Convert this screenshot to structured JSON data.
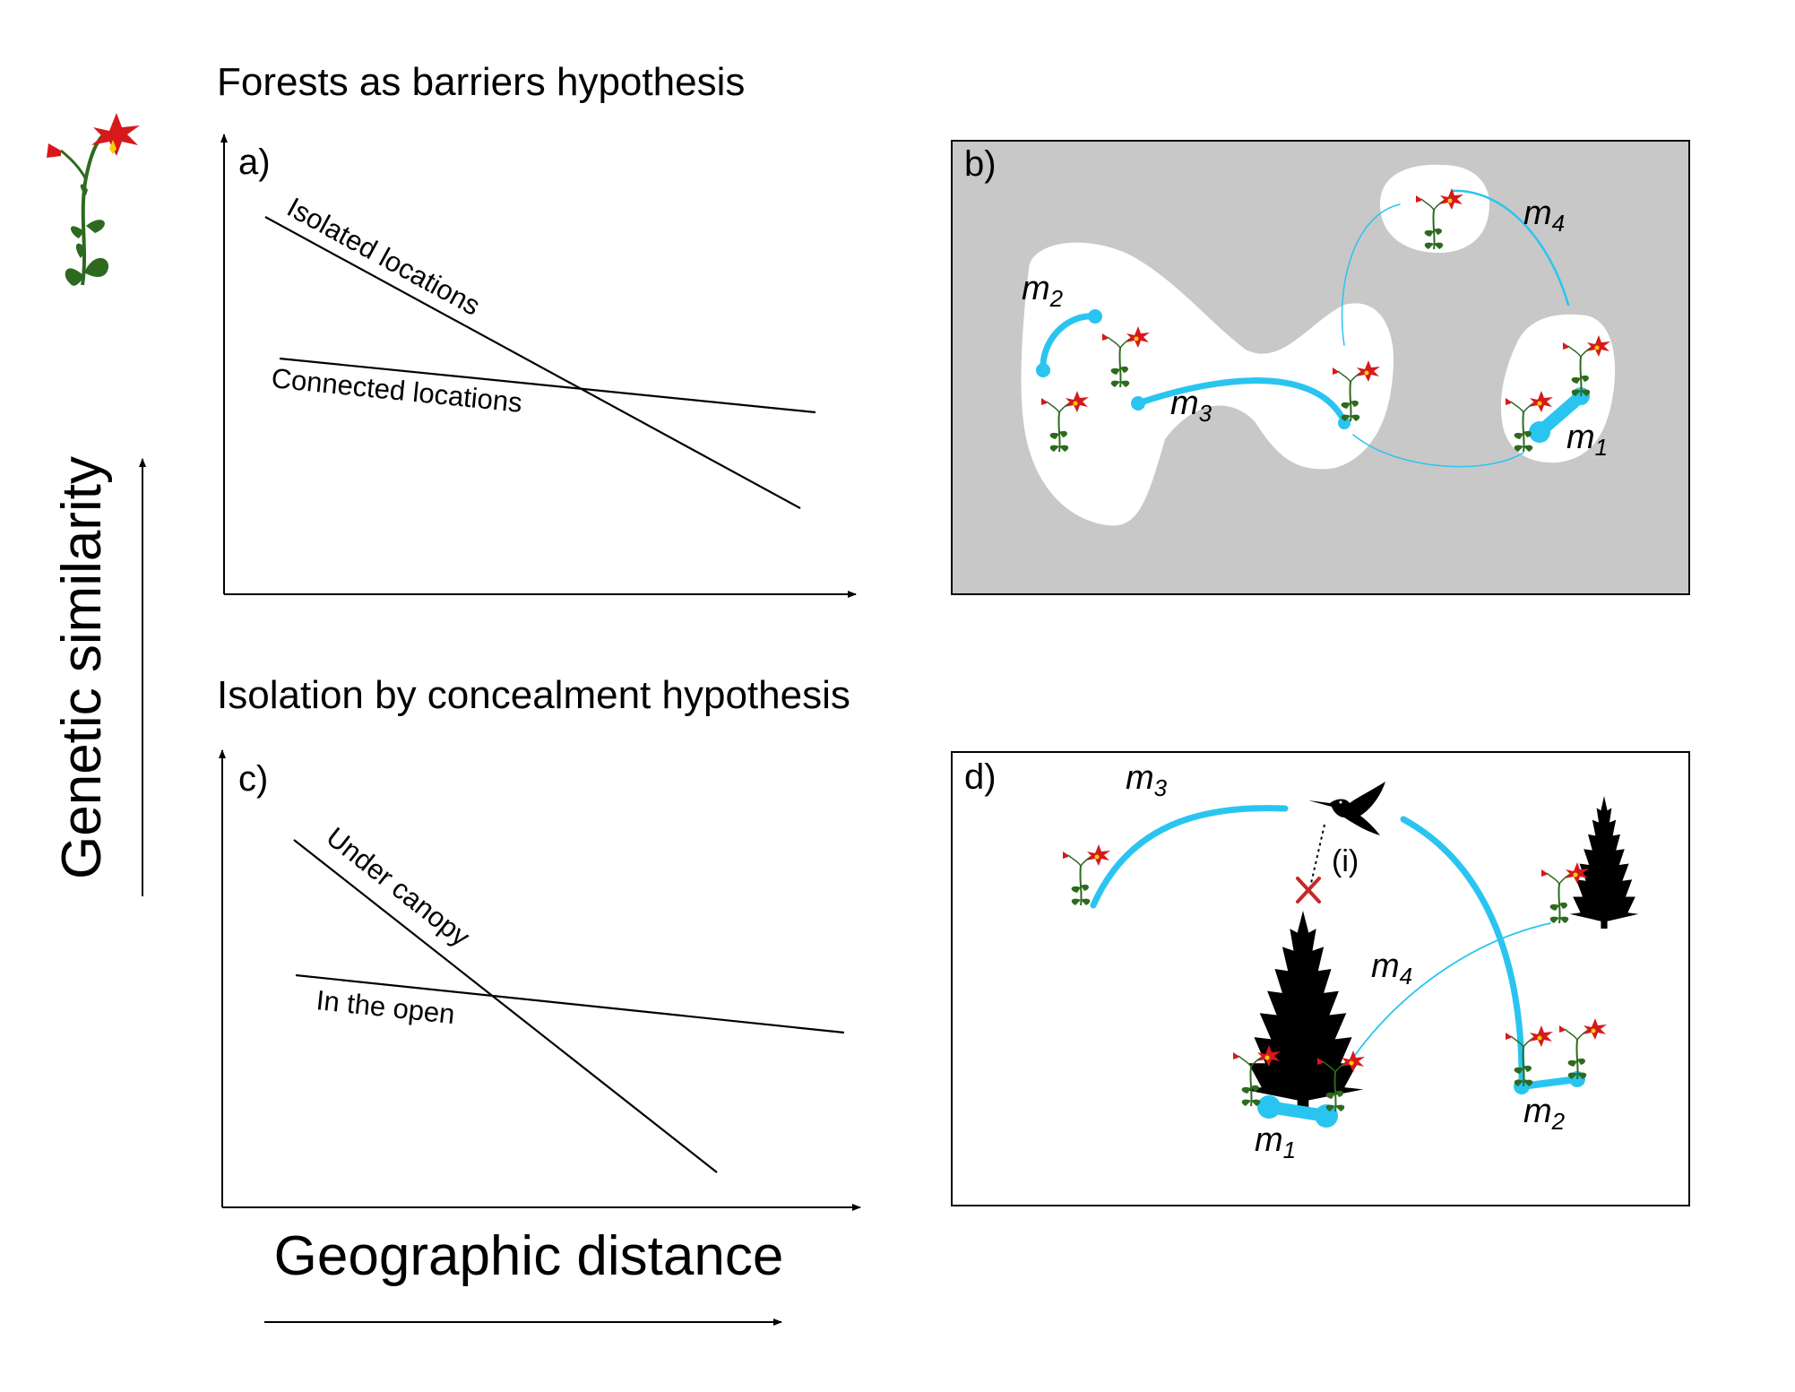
{
  "titles": {
    "top": "Forests as barriers hypothesis",
    "bottom": "Isolation by concealment hypothesis"
  },
  "axes": {
    "y_label": "Genetic similarity",
    "x_label": "Geographic distance"
  },
  "panels": {
    "a": {
      "label": "a)",
      "lines": [
        {
          "name": "Isolated locations"
        },
        {
          "name": "Connected locations"
        }
      ]
    },
    "b": {
      "label": "b)",
      "migration": [
        {
          "m": "m",
          "sub": "1"
        },
        {
          "m": "m",
          "sub": "2"
        },
        {
          "m": "m",
          "sub": "3"
        },
        {
          "m": "m",
          "sub": "4"
        }
      ]
    },
    "c": {
      "label": "c)",
      "lines": [
        {
          "name": "Under canopy"
        },
        {
          "name": "In the open"
        }
      ]
    },
    "d": {
      "label": "d)",
      "annotation": "(i)",
      "migration": [
        {
          "m": "m",
          "sub": "1"
        },
        {
          "m": "m",
          "sub": "2"
        },
        {
          "m": "m",
          "sub": "3"
        },
        {
          "m": "m",
          "sub": "4"
        }
      ]
    }
  },
  "colors": {
    "migration": "#29c5f0",
    "forest": "#c8c8c8",
    "petal": "#d7191c",
    "stamen": "#f5d000",
    "leaf": "#2d6a1f",
    "cross": "#c62828",
    "silhouette": "#000000"
  },
  "icons": [
    "columbine-flower-icon",
    "hummingbird-icon",
    "conifer-tree-icon"
  ]
}
